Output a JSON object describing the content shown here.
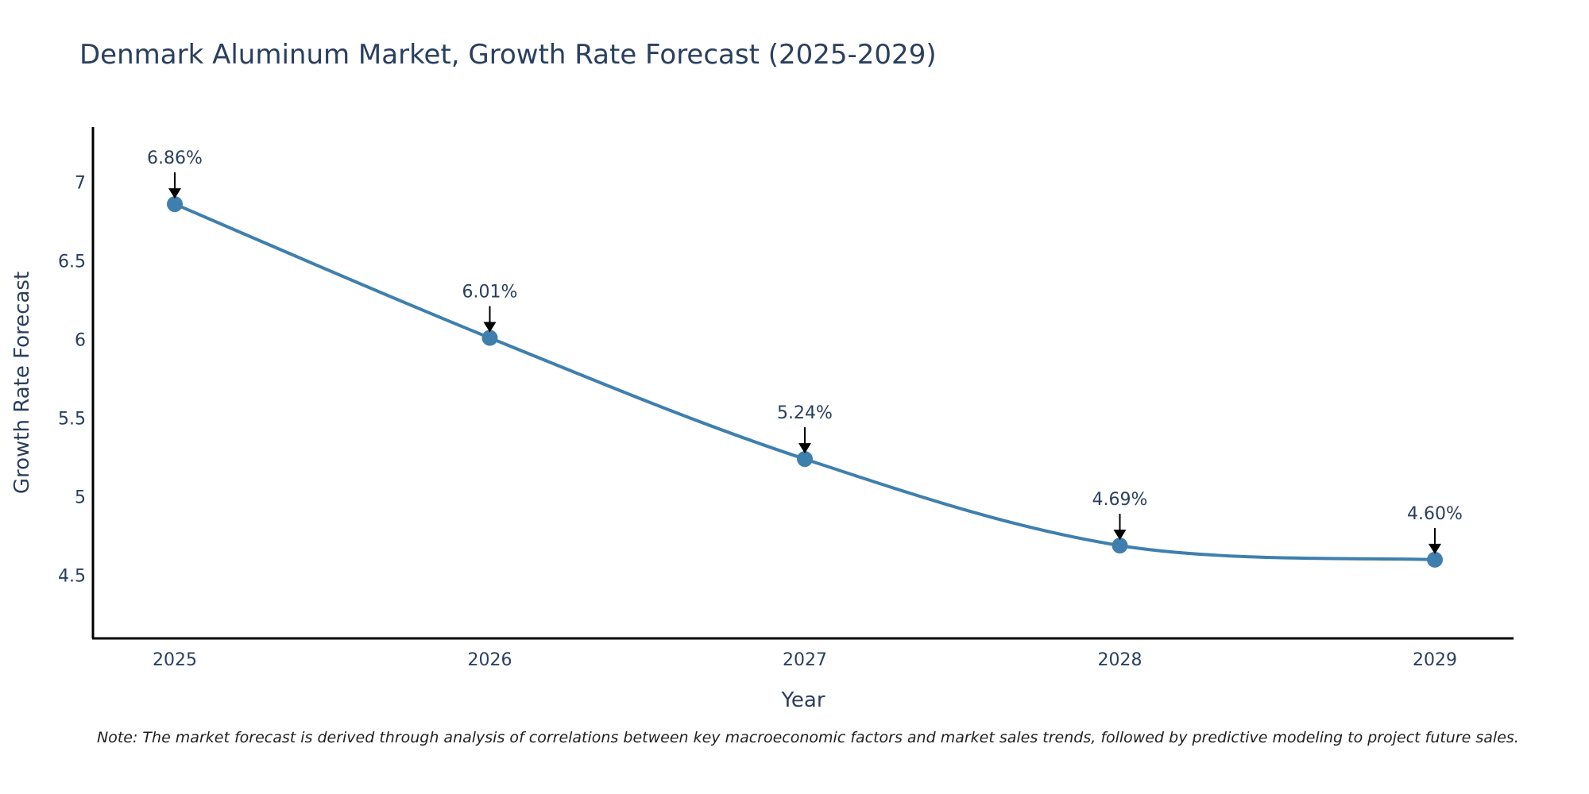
{
  "chart_data": {
    "type": "line",
    "title": "Denmark Aluminum Market, Growth Rate Forecast (2025-2029)",
    "xlabel": "Year",
    "ylabel": "Growth Rate Forecast",
    "categories": [
      "2025",
      "2026",
      "2027",
      "2028",
      "2029"
    ],
    "values": [
      6.86,
      6.01,
      5.24,
      4.69,
      4.6
    ],
    "data_labels": [
      "6.86%",
      "6.01%",
      "5.24%",
      "4.69%",
      "4.60%"
    ],
    "yticks": [
      4.5,
      5,
      5.5,
      6,
      6.5,
      7
    ],
    "ytick_labels": [
      "4.5",
      "5",
      "5.5",
      "6",
      "6.5",
      "7"
    ],
    "ylim": [
      4.1,
      7.35
    ],
    "line_color": "#3f7fae",
    "marker_color": "#3f7fae",
    "grid": false
  },
  "note": "Note: The market forecast is derived through analysis of correlations between key macroeconomic factors and market sales trends, followed by predictive modeling to project future sales."
}
